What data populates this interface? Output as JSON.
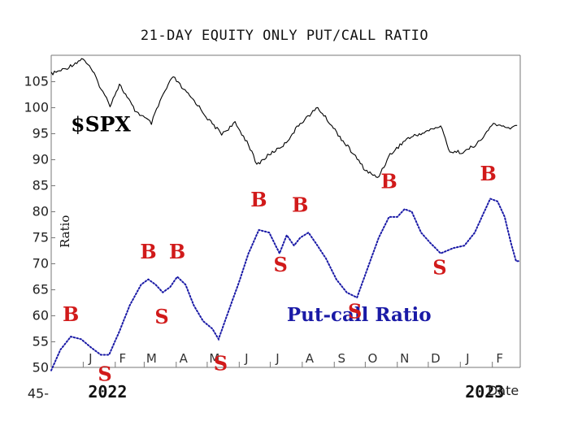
{
  "chart_data": {
    "type": "line",
    "title": "21-DAY EQUITY ONLY PUT/CALL RATIO",
    "xlabel": "Date",
    "ylabel": "Ratio",
    "ylim": [
      45,
      110
    ],
    "y_ticks": [
      45,
      50,
      55,
      60,
      65,
      70,
      75,
      80,
      85,
      90,
      95,
      100,
      105
    ],
    "x_range": [
      "2021-12-01",
      "2023-02-28"
    ],
    "months": [
      {
        "label": "J",
        "date": "2022-01-01"
      },
      {
        "label": "F",
        "date": "2022-02-01"
      },
      {
        "label": "M",
        "date": "2022-03-01"
      },
      {
        "label": "A",
        "date": "2022-04-01"
      },
      {
        "label": "M",
        "date": "2022-05-01"
      },
      {
        "label": "J",
        "date": "2022-06-01"
      },
      {
        "label": "J",
        "date": "2022-07-01"
      },
      {
        "label": "A",
        "date": "2022-08-01"
      },
      {
        "label": "S",
        "date": "2022-09-01"
      },
      {
        "label": "O",
        "date": "2022-10-01"
      },
      {
        "label": "N",
        "date": "2022-11-01"
      },
      {
        "label": "D",
        "date": "2022-12-01"
      },
      {
        "label": "J",
        "date": "2023-01-01"
      },
      {
        "label": "F",
        "date": "2023-02-01"
      }
    ],
    "years": [
      {
        "label": "2022",
        "date": "2022-01-01"
      },
      {
        "label": "2023",
        "date": "2023-01-01"
      }
    ],
    "grid": false,
    "legend": "none",
    "series": [
      {
        "name": "$SPX",
        "color": "#000000",
        "style": "line",
        "points": [
          [
            "2021-12-01",
            106.5
          ],
          [
            "2021-12-15",
            107.5
          ],
          [
            "2022-01-01",
            109.5
          ],
          [
            "2022-01-10",
            107
          ],
          [
            "2022-01-20",
            103
          ],
          [
            "2022-01-27",
            100.5
          ],
          [
            "2022-02-05",
            104.5
          ],
          [
            "2022-02-20",
            99.5
          ],
          [
            "2022-03-08",
            97
          ],
          [
            "2022-03-18",
            102
          ],
          [
            "2022-03-29",
            106
          ],
          [
            "2022-04-08",
            103.5
          ],
          [
            "2022-04-20",
            101
          ],
          [
            "2022-05-03",
            97.5
          ],
          [
            "2022-05-15",
            95
          ],
          [
            "2022-05-28",
            97
          ],
          [
            "2022-06-10",
            93
          ],
          [
            "2022-06-18",
            89
          ],
          [
            "2022-06-30",
            91
          ],
          [
            "2022-07-15",
            93
          ],
          [
            "2022-07-30",
            97
          ],
          [
            "2022-08-16",
            100
          ],
          [
            "2022-08-28",
            97
          ],
          [
            "2022-09-08",
            94
          ],
          [
            "2022-09-20",
            91
          ],
          [
            "2022-10-01",
            88
          ],
          [
            "2022-10-13",
            86.5
          ],
          [
            "2022-10-25",
            91
          ],
          [
            "2022-11-10",
            94
          ],
          [
            "2022-11-30",
            95.5
          ],
          [
            "2022-12-13",
            96.5
          ],
          [
            "2022-12-22",
            91.5
          ],
          [
            "2023-01-05",
            91.5
          ],
          [
            "2023-01-20",
            93.5
          ],
          [
            "2023-02-02",
            97
          ],
          [
            "2023-02-15",
            96
          ],
          [
            "2023-02-25",
            96.5
          ]
        ]
      },
      {
        "name": "Put-call Ratio",
        "color": "#1a1aa6",
        "style": "dotted",
        "points": [
          [
            "2021-12-01",
            49.5
          ],
          [
            "2021-12-10",
            53.5
          ],
          [
            "2021-12-20",
            56
          ],
          [
            "2021-12-30",
            55.5
          ],
          [
            "2022-01-08",
            54
          ],
          [
            "2022-01-18",
            52.5
          ],
          [
            "2022-01-26",
            52.5
          ],
          [
            "2022-02-05",
            57
          ],
          [
            "2022-02-15",
            62
          ],
          [
            "2022-02-26",
            66
          ],
          [
            "2022-03-05",
            67
          ],
          [
            "2022-03-12",
            66
          ],
          [
            "2022-03-19",
            64.5
          ],
          [
            "2022-03-26",
            65.5
          ],
          [
            "2022-04-02",
            67.5
          ],
          [
            "2022-04-10",
            66
          ],
          [
            "2022-04-18",
            62
          ],
          [
            "2022-04-27",
            59
          ],
          [
            "2022-05-06",
            57.5
          ],
          [
            "2022-05-12",
            55.5
          ],
          [
            "2022-05-20",
            60
          ],
          [
            "2022-05-31",
            66
          ],
          [
            "2022-06-10",
            72
          ],
          [
            "2022-06-20",
            76.5
          ],
          [
            "2022-06-30",
            76
          ],
          [
            "2022-07-05",
            74
          ],
          [
            "2022-07-10",
            72
          ],
          [
            "2022-07-17",
            75.5
          ],
          [
            "2022-07-24",
            73.5
          ],
          [
            "2022-07-30",
            75
          ],
          [
            "2022-08-07",
            76
          ],
          [
            "2022-08-14",
            74
          ],
          [
            "2022-08-24",
            71
          ],
          [
            "2022-09-03",
            67
          ],
          [
            "2022-09-13",
            64.5
          ],
          [
            "2022-09-23",
            63.5
          ],
          [
            "2022-10-03",
            69
          ],
          [
            "2022-10-14",
            75
          ],
          [
            "2022-10-24",
            79
          ],
          [
            "2022-11-01",
            79
          ],
          [
            "2022-11-08",
            80.5
          ],
          [
            "2022-11-15",
            80
          ],
          [
            "2022-11-24",
            76
          ],
          [
            "2022-12-03",
            74
          ],
          [
            "2022-12-13",
            72
          ],
          [
            "2022-12-25",
            73
          ],
          [
            "2023-01-05",
            73.5
          ],
          [
            "2023-01-15",
            76
          ],
          [
            "2023-01-23",
            79.5
          ],
          [
            "2023-01-30",
            82.5
          ],
          [
            "2023-02-06",
            82
          ],
          [
            "2023-02-13",
            79
          ],
          [
            "2023-02-19",
            74
          ],
          [
            "2023-02-24",
            70.5
          ],
          [
            "2023-02-28",
            70.5
          ]
        ]
      }
    ],
    "signals": [
      {
        "label": "B",
        "date": "2021-12-20",
        "value": 59
      },
      {
        "label": "S",
        "date": "2022-01-22",
        "value": 47.5
      },
      {
        "label": "B",
        "date": "2022-03-05",
        "value": 71
      },
      {
        "label": "B",
        "date": "2022-04-02",
        "value": 71
      },
      {
        "label": "S",
        "date": "2022-03-18",
        "value": 58.5
      },
      {
        "label": "S",
        "date": "2022-05-14",
        "value": 49.5
      },
      {
        "label": "B",
        "date": "2022-06-20",
        "value": 81
      },
      {
        "label": "S",
        "date": "2022-07-11",
        "value": 68.5
      },
      {
        "label": "B",
        "date": "2022-07-30",
        "value": 80
      },
      {
        "label": "S",
        "date": "2022-09-21",
        "value": 59.5
      },
      {
        "label": "B",
        "date": "2022-10-24",
        "value": 84.5
      },
      {
        "label": "S",
        "date": "2022-12-12",
        "value": 68
      },
      {
        "label": "B",
        "date": "2023-01-28",
        "value": 86
      }
    ],
    "annotations": [
      {
        "text": "$SPX",
        "date": "2022-01-18",
        "value": 95.5,
        "color": "#000000"
      },
      {
        "text": "Put-call Ratio",
        "date": "2022-09-25",
        "value": 59,
        "color": "#1a1aa6"
      }
    ]
  }
}
